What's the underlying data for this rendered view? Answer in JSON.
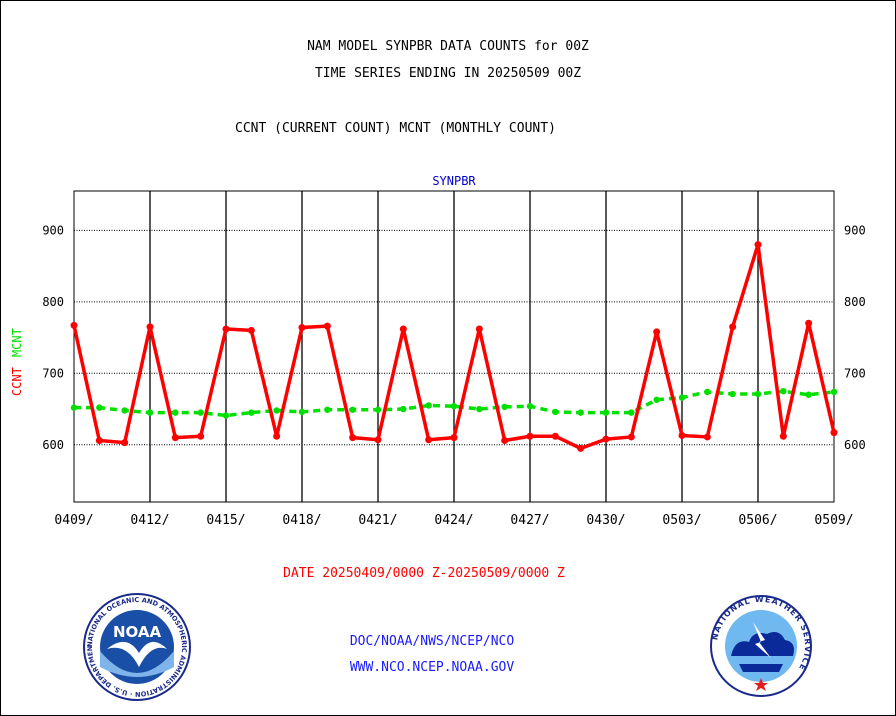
{
  "header": {
    "title_line1": "NAM MODEL SYNPBR DATA COUNTS for 00Z",
    "title_line2": "TIME SERIES ENDING IN 20250509 00Z",
    "subtitle": "CCNT (CURRENT COUNT) MCNT (MONTHLY COUNT)"
  },
  "footer": {
    "date_range": "DATE 20250409/0000 Z-20250509/0000 Z",
    "org_line1": "DOC/NOAA/NWS/NCEP/NCO",
    "org_line2": "WWW.NCO.NCEP.NOAA.GOV"
  },
  "logos": {
    "noaa_text": "NOAA",
    "noaa_ring_text": "NATIONAL OCEANIC AND ATMOSPHERIC ADMINISTRATION · U.S. DEPARTMENT OF COMMERCE",
    "nws_ring_text": "NATIONAL WEATHER SERVICE"
  },
  "chart_data": {
    "type": "line",
    "title": "SYNPBR",
    "ylabel_series": [
      "CCNT",
      "MCNT"
    ],
    "ylim": [
      520,
      955
    ],
    "yticks": [
      600,
      700,
      800,
      900
    ],
    "grid": true,
    "x_tick_labels": [
      "0409/",
      "0412/",
      "0415/",
      "0418/",
      "0421/",
      "0424/",
      "0427/",
      "0430/",
      "0503/",
      "0506/",
      "0509/"
    ],
    "days": 30,
    "colors": {
      "ccnt": "#ff0000",
      "mcnt": "#00e000",
      "title": "#0000cc"
    },
    "series": [
      {
        "name": "CCNT",
        "values": [
          767,
          606,
          603,
          765,
          610,
          612,
          762,
          760,
          612,
          764,
          766,
          610,
          607,
          762,
          607,
          610,
          762,
          606,
          612,
          612,
          595,
          608,
          611,
          758,
          613,
          611,
          765,
          880,
          612,
          770,
          617
        ]
      },
      {
        "name": "MCNT",
        "values": [
          652,
          652,
          648,
          645,
          645,
          645,
          641,
          645,
          648,
          646,
          649,
          649,
          649,
          650,
          655,
          654,
          650,
          653,
          654,
          646,
          645,
          645,
          645,
          663,
          666,
          674,
          671,
          671,
          675,
          670,
          674
        ]
      }
    ]
  }
}
